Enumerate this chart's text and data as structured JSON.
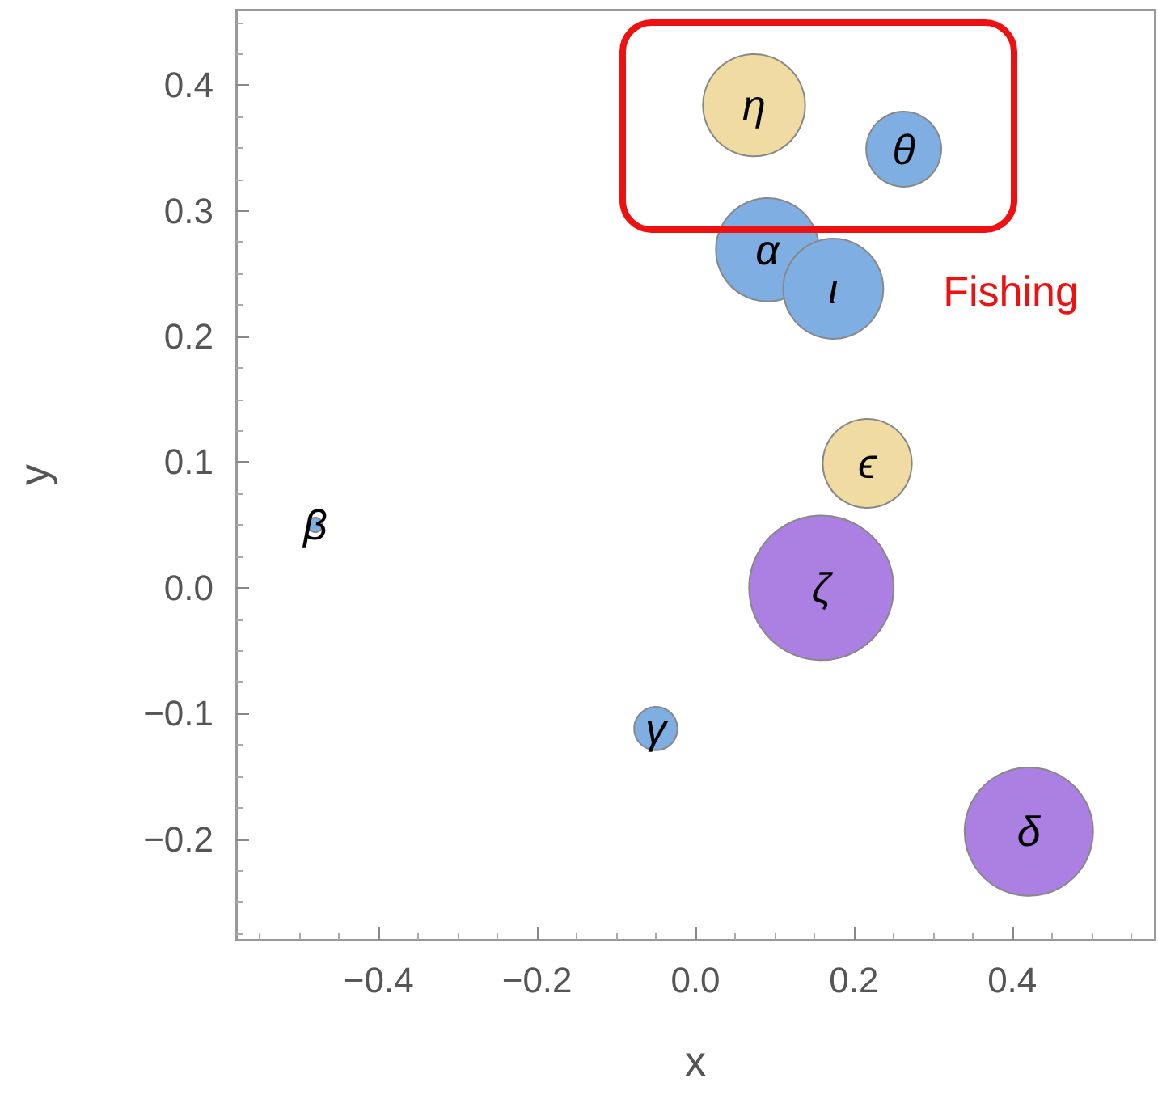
{
  "chart_data": {
    "type": "bubble",
    "xlabel": "x",
    "ylabel": "y",
    "xlim": [
      -0.58,
      0.58
    ],
    "ylim": [
      -0.28,
      0.46
    ],
    "xticks": [
      -0.4,
      -0.2,
      {
        "value": 0,
        "label": "0.0"
      },
      0.2,
      0.4
    ],
    "yticks": [
      -0.2,
      -0.1,
      {
        "value": 0,
        "label": "0.0"
      },
      0.1,
      0.2,
      0.3,
      0.4
    ],
    "grid": false,
    "series": [
      {
        "color": "#f0dca2",
        "x": [
          0.074,
          0.217
        ],
        "values": [
          0.384,
          0.099
        ],
        "sizes": [
          0.5,
          0.38
        ]
      },
      {
        "color": "#7eaee2",
        "x": [
          0.263,
          0.091,
          0.174,
          -0.05,
          -0.48
        ],
        "values": [
          0.349,
          0.269,
          0.238,
          -0.112,
          0.05
        ],
        "sizes": [
          0.27,
          0.51,
          0.48,
          0.09,
          0.01
        ]
      },
      {
        "color": "#ab80e2",
        "x": [
          0.159,
          0.421
        ],
        "values": [
          0.0,
          -0.194
        ],
        "sizes": [
          1,
          0.79
        ]
      }
    ],
    "annotations": [
      {
        "text": "η",
        "x": 0.074,
        "y": 0.384
      },
      {
        "text": "ϵ",
        "x": 0.217,
        "y": 0.099
      },
      {
        "text": "θ",
        "x": 0.263,
        "y": 0.349
      },
      {
        "text": "α",
        "x": 0.091,
        "y": 0.269
      },
      {
        "text": "ι",
        "x": 0.174,
        "y": 0.238
      },
      {
        "text": "γ",
        "x": -0.05,
        "y": -0.112
      },
      {
        "text": "β",
        "x": -0.48,
        "y": 0.05
      },
      {
        "text": "ζ",
        "x": 0.159,
        "y": 0.0
      },
      {
        "text": "δ",
        "x": 0.421,
        "y": -0.194
      },
      "Fishing"
    ]
  }
}
